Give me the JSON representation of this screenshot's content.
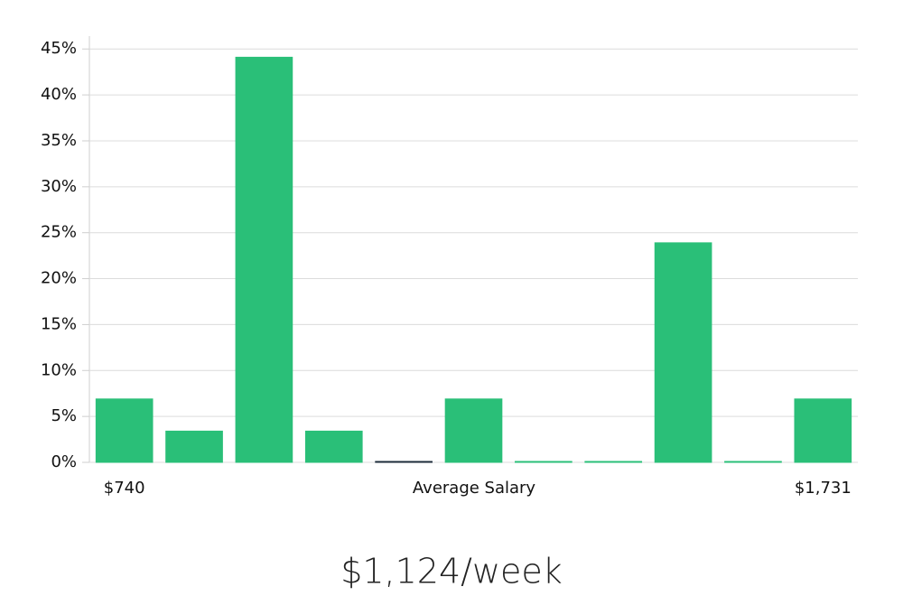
{
  "chart_data": {
    "type": "bar",
    "categories": [
      "$740",
      null,
      null,
      null,
      null,
      null,
      null,
      null,
      null,
      null,
      "$1,731"
    ],
    "values": [
      6.9,
      3.4,
      44.1,
      3.4,
      0,
      6.9,
      0,
      0,
      23.9,
      0,
      6.9
    ],
    "colors": [
      "#2abf78",
      "#2abf78",
      "#2abf78",
      "#2abf78",
      "#1c2b3a",
      "#2abf78",
      "#2abf78",
      "#2abf78",
      "#2abf78",
      "#2abf78",
      "#2abf78"
    ],
    "x_label": "Average Salary",
    "annotation": "$1,124/week",
    "ylim": [
      0,
      46.4
    ],
    "yticks": [
      {
        "value": 0,
        "label": "0%"
      },
      {
        "value": 5,
        "label": "5%"
      },
      {
        "value": 10,
        "label": "10%"
      },
      {
        "value": 15,
        "label": "15%"
      },
      {
        "value": 20,
        "label": "20%"
      },
      {
        "value": 25,
        "label": "25%"
      },
      {
        "value": 30,
        "label": "30%"
      },
      {
        "value": 35,
        "label": "35%"
      },
      {
        "value": 40,
        "label": "40%"
      },
      {
        "value": 45,
        "label": "45%"
      }
    ],
    "grid": true
  }
}
